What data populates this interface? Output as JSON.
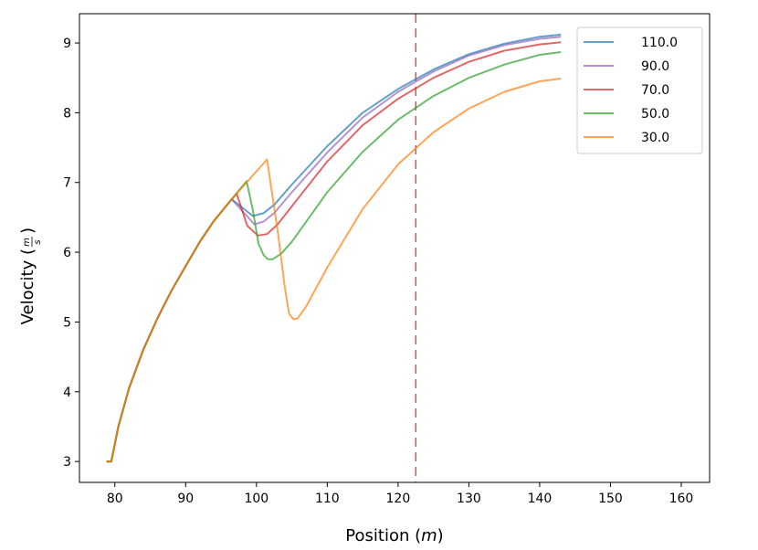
{
  "chart_data": {
    "type": "line",
    "title": "",
    "xlabel": "Position (m)",
    "xlabel_parts": {
      "prefix": "Position (",
      "unit": "m",
      "suffix": ")"
    },
    "ylabel": "Velocity (m/s)",
    "ylabel_parts": {
      "prefix": "Velocity (",
      "num": "m",
      "den": "s",
      "suffix": ")"
    },
    "xlim": [
      75,
      164
    ],
    "ylim": [
      2.7,
      9.42
    ],
    "xticks": [
      80,
      90,
      100,
      110,
      120,
      130,
      140,
      150,
      160
    ],
    "yticks": [
      3,
      4,
      5,
      6,
      7,
      8,
      9
    ],
    "vline": {
      "x": 122.5,
      "style": "dashed",
      "color": "#d62728"
    },
    "legend": {
      "placement": "top-right"
    },
    "shared_branch": {
      "x": [
        78.8,
        79.5,
        80.5,
        82,
        84,
        86,
        88,
        90,
        92,
        94,
        96.5
      ],
      "y": [
        3.0,
        3.0,
        3.5,
        4.05,
        4.6,
        5.05,
        5.45,
        5.8,
        6.15,
        6.45,
        6.76
      ]
    },
    "series": [
      {
        "name": "110.0",
        "color": "#1f77b4",
        "x": [
          96.5,
          99.5,
          101,
          102.5,
          105,
          110,
          115,
          120,
          125,
          130,
          135,
          140,
          143
        ],
        "y": [
          6.76,
          6.52,
          6.56,
          6.68,
          6.97,
          7.52,
          8.0,
          8.34,
          8.62,
          8.84,
          8.99,
          9.09,
          9.12
        ]
      },
      {
        "name": "90.0",
        "color": "#9467bd",
        "x": [
          96.5,
          99.7,
          101,
          102.5,
          105,
          110,
          115,
          120,
          125,
          130,
          135,
          140,
          143
        ],
        "y": [
          6.76,
          6.4,
          6.44,
          6.56,
          6.86,
          7.43,
          7.93,
          8.3,
          8.59,
          8.82,
          8.97,
          9.06,
          9.09
        ]
      },
      {
        "name": "70.0",
        "color": "#d62728",
        "x": [
          96.5,
          97.2,
          98.7,
          100.2,
          101.5,
          103,
          105,
          110,
          115,
          120,
          125,
          130,
          135,
          140,
          143
        ],
        "y": [
          6.76,
          6.84,
          6.38,
          6.24,
          6.26,
          6.4,
          6.66,
          7.3,
          7.82,
          8.2,
          8.5,
          8.73,
          8.89,
          8.98,
          9.01
        ]
      },
      {
        "name": "50.0",
        "color": "#2ca02c",
        "x": [
          96.5,
          98.6,
          99.5,
          100.3,
          101,
          101.6,
          102.3,
          103.5,
          105,
          110,
          115,
          120,
          125,
          130,
          135,
          140,
          143
        ],
        "y": [
          6.76,
          7.02,
          6.6,
          6.12,
          5.96,
          5.9,
          5.9,
          5.98,
          6.15,
          6.86,
          7.44,
          7.9,
          8.24,
          8.5,
          8.69,
          8.83,
          8.87
        ]
      },
      {
        "name": "30.0",
        "color": "#ff7f0e",
        "x": [
          96.5,
          101.5,
          103,
          104,
          104.6,
          105.2,
          105.8,
          107,
          110,
          115,
          120,
          125,
          130,
          135,
          140,
          143
        ],
        "y": [
          6.76,
          7.33,
          6.3,
          5.5,
          5.12,
          5.04,
          5.05,
          5.22,
          5.78,
          6.62,
          7.26,
          7.72,
          8.06,
          8.3,
          8.45,
          8.49
        ]
      }
    ]
  }
}
